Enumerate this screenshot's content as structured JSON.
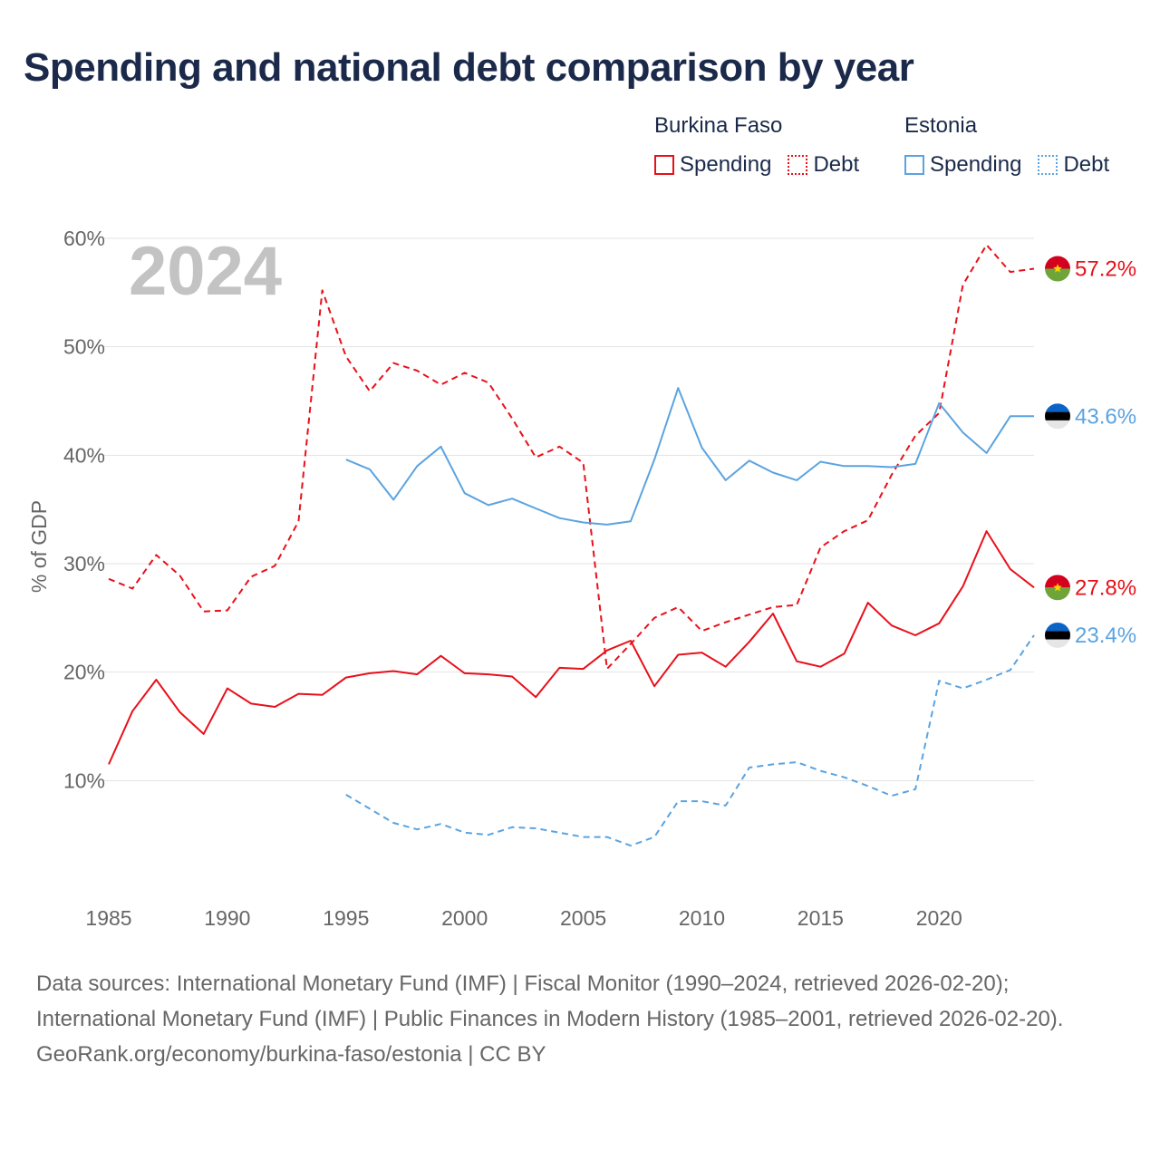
{
  "title": "Spending and national debt comparison by year",
  "legend": {
    "groups": [
      {
        "name": "Burkina Faso",
        "color": "#e8101a",
        "items": [
          {
            "label": "Spending",
            "style": "solid"
          },
          {
            "label": "Debt",
            "style": "dotted"
          }
        ]
      },
      {
        "name": "Estonia",
        "color": "#5ba3e0",
        "items": [
          {
            "label": "Spending",
            "style": "solid"
          },
          {
            "label": "Debt",
            "style": "dotted"
          }
        ]
      }
    ]
  },
  "chart_data": {
    "type": "line",
    "year_label": "2024",
    "ylabel": "% of GDP",
    "xlabel": "",
    "xlim": [
      1985,
      2024
    ],
    "ylim": [
      0,
      60
    ],
    "x_ticks": [
      1985,
      1990,
      1995,
      2000,
      2005,
      2010,
      2015,
      2020
    ],
    "y_ticks": [
      10,
      20,
      30,
      40,
      50,
      60
    ],
    "y_tick_labels": [
      "10%",
      "20%",
      "30%",
      "40%",
      "50%",
      "60%"
    ],
    "series": [
      {
        "name": "Burkina Faso Spending",
        "country": "Burkina Faso",
        "color": "#e8101a",
        "dash": "solid",
        "x": [
          1985,
          1986,
          1987,
          1988,
          1989,
          1990,
          1991,
          1992,
          1993,
          1994,
          1995,
          1996,
          1997,
          1998,
          1999,
          2000,
          2001,
          2002,
          2003,
          2004,
          2005,
          2006,
          2007,
          2008,
          2009,
          2010,
          2011,
          2012,
          2013,
          2014,
          2015,
          2016,
          2017,
          2018,
          2019,
          2020,
          2021,
          2022,
          2023,
          2024
        ],
        "values": [
          11.5,
          16.4,
          19.3,
          16.3,
          14.3,
          18.5,
          17.1,
          16.8,
          18.0,
          17.9,
          19.5,
          19.9,
          20.1,
          19.8,
          21.5,
          19.9,
          19.8,
          19.6,
          17.7,
          20.4,
          20.3,
          22.0,
          22.9,
          18.7,
          21.6,
          21.8,
          20.5,
          22.8,
          25.4,
          21.0,
          20.5,
          21.7,
          26.4,
          24.3,
          23.4,
          24.5,
          27.9,
          33.0,
          29.5,
          27.8
        ],
        "end_label": "27.8%"
      },
      {
        "name": "Burkina Faso Debt",
        "country": "Burkina Faso",
        "color": "#e8101a",
        "dash": "dashed",
        "x": [
          1985,
          1986,
          1987,
          1988,
          1989,
          1990,
          1991,
          1992,
          1993,
          1994,
          1995,
          1996,
          1997,
          1998,
          1999,
          2000,
          2001,
          2002,
          2003,
          2004,
          2005,
          2006,
          2007,
          2008,
          2009,
          2010,
          2011,
          2012,
          2013,
          2014,
          2015,
          2016,
          2017,
          2018,
          2019,
          2020,
          2021,
          2022,
          2023,
          2024
        ],
        "values": [
          28.6,
          27.7,
          30.8,
          28.9,
          25.6,
          25.7,
          28.8,
          29.8,
          33.9,
          55.2,
          49.1,
          45.9,
          48.5,
          47.8,
          46.5,
          47.6,
          46.7,
          43.4,
          39.8,
          40.8,
          39.3,
          20.3,
          22.6,
          25.0,
          26.0,
          23.8,
          24.6,
          25.3,
          26.0,
          26.2,
          31.5,
          33.0,
          34.0,
          38.2,
          41.8,
          43.9,
          55.7,
          59.4,
          56.9,
          57.2
        ],
        "end_label": "57.2%"
      },
      {
        "name": "Estonia Spending",
        "country": "Estonia",
        "color": "#5ba3e0",
        "dash": "solid",
        "x": [
          1995,
          1996,
          1997,
          1998,
          1999,
          2000,
          2001,
          2002,
          2003,
          2004,
          2005,
          2006,
          2007,
          2008,
          2009,
          2010,
          2011,
          2012,
          2013,
          2014,
          2015,
          2016,
          2017,
          2018,
          2019,
          2020,
          2021,
          2022,
          2023,
          2024
        ],
        "values": [
          39.6,
          38.7,
          35.9,
          39.0,
          40.8,
          36.5,
          35.4,
          36.0,
          35.1,
          34.2,
          33.8,
          33.6,
          33.9,
          39.6,
          46.2,
          40.7,
          37.7,
          39.5,
          38.4,
          37.7,
          39.4,
          39.0,
          39.0,
          38.9,
          39.2,
          44.8,
          42.1,
          40.2,
          43.6,
          43.6
        ],
        "end_label": "43.6%"
      },
      {
        "name": "Estonia Debt",
        "country": "Estonia",
        "color": "#5ba3e0",
        "dash": "dashed",
        "x": [
          1995,
          1996,
          1997,
          1998,
          1999,
          2000,
          2001,
          2002,
          2003,
          2004,
          2005,
          2006,
          2007,
          2008,
          2009,
          2010,
          2011,
          2012,
          2013,
          2014,
          2015,
          2016,
          2017,
          2018,
          2019,
          2020,
          2021,
          2022,
          2023,
          2024
        ],
        "values": [
          8.7,
          7.4,
          6.1,
          5.5,
          6.0,
          5.2,
          5.0,
          5.7,
          5.6,
          5.2,
          4.8,
          4.8,
          4.0,
          4.8,
          8.1,
          8.1,
          7.7,
          11.2,
          11.5,
          11.7,
          10.9,
          10.3,
          9.5,
          8.6,
          9.2,
          19.2,
          18.5,
          19.3,
          20.2,
          23.4
        ],
        "end_label": "23.4%"
      }
    ]
  },
  "flags": {
    "burkina_faso": {
      "top": "#d3001e",
      "bottom": "#6fa43b",
      "star": "#ffd200"
    },
    "estonia": {
      "top": "#0a63c7",
      "middle": "#000000",
      "bottom": "#e6e6e6"
    }
  },
  "footer": {
    "sources": "Data sources: International Monetary Fund (IMF) | Fiscal Monitor (1990–2024, retrieved 2026-02-20); International Monetary Fund (IMF) | Public Finances in Modern History (1985–2001, retrieved 2026-02-20).",
    "credit": "GeoRank.org/economy/burkina-faso/estonia | CC BY"
  }
}
